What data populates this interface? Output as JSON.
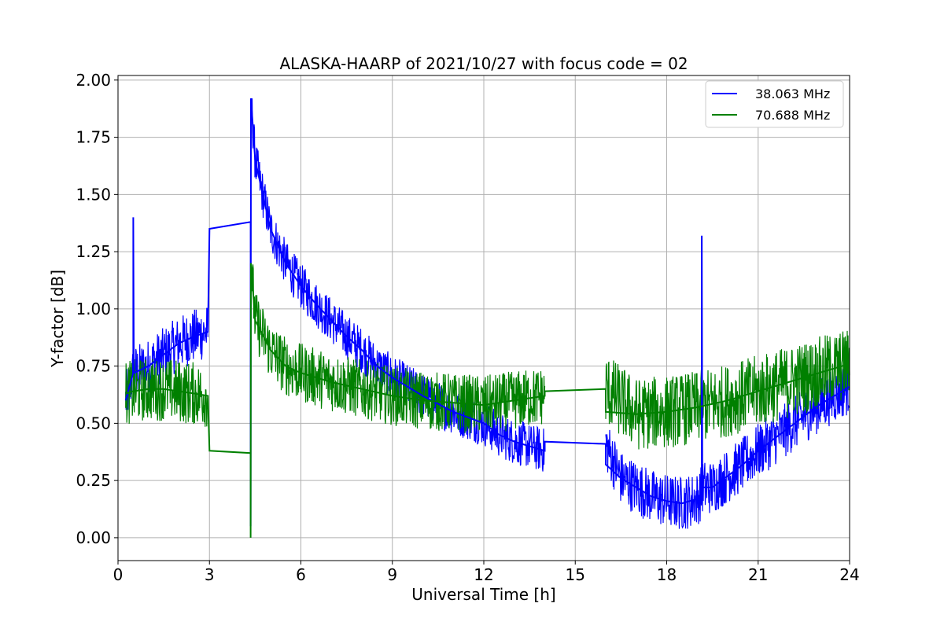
{
  "chart_data": {
    "type": "line",
    "title": "ALASKA-HAARP of 2021/10/27 with focus code = 02",
    "xlabel": "Universal Time [h]",
    "ylabel": "Y-factor [dB]",
    "xlim": [
      0,
      24
    ],
    "ylim": [
      -0.1,
      2.02
    ],
    "xticks": [
      0,
      3,
      6,
      9,
      12,
      15,
      18,
      21,
      24
    ],
    "xtick_labels": [
      "0",
      "3",
      "6",
      "9",
      "12",
      "15",
      "18",
      "21",
      "24"
    ],
    "yticks": [
      0.0,
      0.25,
      0.5,
      0.75,
      1.0,
      1.25,
      1.5,
      1.75,
      2.0
    ],
    "ytick_labels": [
      "0.00",
      "0.25",
      "0.50",
      "0.75",
      "1.00",
      "1.25",
      "1.50",
      "1.75",
      "2.00"
    ],
    "grid": true,
    "legend_position": "top-right",
    "series": [
      {
        "name": "38.063 MHz",
        "color": "#0000ff",
        "points": [
          [
            0.25,
            0.6
          ],
          [
            0.5,
            0.72
          ],
          [
            0.5,
            1.4
          ],
          [
            0.52,
            0.72
          ],
          [
            1.0,
            0.75
          ],
          [
            1.5,
            0.8
          ],
          [
            2.0,
            0.85
          ],
          [
            2.5,
            0.88
          ],
          [
            2.95,
            0.9
          ],
          [
            3.0,
            1.35
          ],
          [
            4.35,
            1.38
          ],
          [
            4.35,
            0.05
          ],
          [
            4.36,
            1.92
          ],
          [
            4.5,
            1.65
          ],
          [
            5.0,
            1.35
          ],
          [
            5.5,
            1.2
          ],
          [
            6.0,
            1.1
          ],
          [
            6.5,
            1.02
          ],
          [
            7.0,
            0.95
          ],
          [
            7.5,
            0.88
          ],
          [
            8.0,
            0.82
          ],
          [
            8.5,
            0.75
          ],
          [
            9.0,
            0.7
          ],
          [
            10.0,
            0.62
          ],
          [
            11.0,
            0.55
          ],
          [
            12.0,
            0.5
          ],
          [
            12.5,
            0.45
          ],
          [
            13.0,
            0.42
          ],
          [
            13.5,
            0.4
          ],
          [
            14.0,
            0.38
          ],
          [
            14.0,
            0.42
          ],
          [
            16.0,
            0.41
          ],
          [
            16.0,
            0.32
          ],
          [
            16.5,
            0.26
          ],
          [
            17.0,
            0.22
          ],
          [
            17.5,
            0.18
          ],
          [
            18.0,
            0.16
          ],
          [
            18.5,
            0.15
          ],
          [
            19.0,
            0.17
          ],
          [
            19.15,
            0.2
          ],
          [
            19.15,
            1.32
          ],
          [
            19.17,
            0.22
          ],
          [
            19.5,
            0.22
          ],
          [
            20.0,
            0.27
          ],
          [
            20.5,
            0.32
          ],
          [
            21.0,
            0.38
          ],
          [
            21.5,
            0.43
          ],
          [
            22.0,
            0.48
          ],
          [
            22.5,
            0.53
          ],
          [
            23.0,
            0.58
          ],
          [
            23.5,
            0.62
          ],
          [
            24.0,
            0.66
          ]
        ]
      },
      {
        "name": "70.688 MHz",
        "color": "#008000",
        "points": [
          [
            0.25,
            0.63
          ],
          [
            0.5,
            0.64
          ],
          [
            1.0,
            0.65
          ],
          [
            1.5,
            0.65
          ],
          [
            2.0,
            0.64
          ],
          [
            2.5,
            0.63
          ],
          [
            2.95,
            0.62
          ],
          [
            3.0,
            0.38
          ],
          [
            4.35,
            0.37
          ],
          [
            4.35,
            0.0
          ],
          [
            4.36,
            1.2
          ],
          [
            4.5,
            0.95
          ],
          [
            5.0,
            0.82
          ],
          [
            5.5,
            0.75
          ],
          [
            6.0,
            0.72
          ],
          [
            7.0,
            0.68
          ],
          [
            8.0,
            0.65
          ],
          [
            9.0,
            0.62
          ],
          [
            10.0,
            0.6
          ],
          [
            11.0,
            0.59
          ],
          [
            12.0,
            0.58
          ],
          [
            13.0,
            0.6
          ],
          [
            14.0,
            0.62
          ],
          [
            14.0,
            0.64
          ],
          [
            16.0,
            0.65
          ],
          [
            16.0,
            0.55
          ],
          [
            17.0,
            0.54
          ],
          [
            18.0,
            0.55
          ],
          [
            19.0,
            0.57
          ],
          [
            20.0,
            0.6
          ],
          [
            21.0,
            0.64
          ],
          [
            22.0,
            0.68
          ],
          [
            23.0,
            0.72
          ],
          [
            24.0,
            0.76
          ]
        ]
      }
    ]
  }
}
